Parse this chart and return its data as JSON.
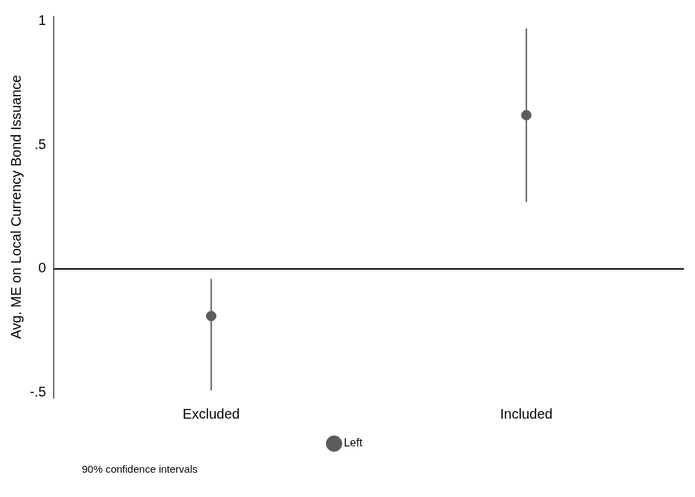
{
  "chart_data": {
    "type": "scatter",
    "categories": [
      "Excluded",
      "Included"
    ],
    "ylabel": "Avg. ME on Local Currency Bond Issuance",
    "series": [
      {
        "name": "Left",
        "color": "#5c5c5c",
        "values": [
          -0.19,
          0.62
        ],
        "errors": [
          [
            -0.49,
            -0.04
          ],
          [
            0.27,
            0.97
          ]
        ]
      }
    ],
    "ylim": [
      -0.52,
      1.02
    ],
    "yticks": [
      {
        "value": -0.5,
        "label": "-.5"
      },
      0,
      {
        "value": 0.5,
        "label": ".5"
      },
      1
    ],
    "ref_lines": [
      {
        "axis": "y",
        "value": 0,
        "color": "#000000"
      }
    ],
    "marker": "circle",
    "grid": false,
    "legend": "bottom",
    "annotations": [
      "90% confidence intervals"
    ]
  }
}
